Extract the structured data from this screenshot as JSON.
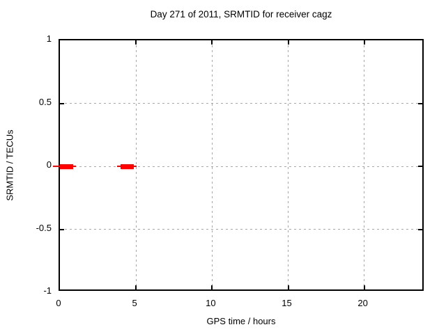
{
  "chart_data": {
    "type": "scatter",
    "title": "Day 271 of 2011, SRMTID for receiver cagz",
    "xlabel": "GPS time / hours",
    "ylabel": "SRMTID / TECUs",
    "xlim": [
      0,
      24
    ],
    "ylim": [
      -1,
      1
    ],
    "xticks": [
      0,
      5,
      10,
      15,
      20
    ],
    "xtick_labels": [
      "0",
      "5",
      "10",
      "15",
      "20"
    ],
    "yticks": [
      1,
      0.5,
      0,
      -0.5,
      -1
    ],
    "ytick_labels": [
      "1",
      "0.5",
      "0",
      "-0.5",
      "-1"
    ],
    "grid": true,
    "grid_style": "dashed",
    "legend_position": "none",
    "colors": {
      "series": "#ff0000",
      "grid": "#a6a6a6",
      "axis": "#000000",
      "background": "#ffffff",
      "text": "#000000"
    },
    "series": [
      {
        "name": "SRMTID",
        "style": "thick horizontal segment with thin whisker extensions, centered at y",
        "segments": [
          {
            "y": 0,
            "bar_x": [
              0.0,
              0.87
            ],
            "whisker_x": [
              -0.45,
              1.05
            ]
          },
          {
            "y": 0,
            "bar_x": [
              4.0,
              4.85
            ],
            "whisker_x": [
              3.75,
              5.05
            ]
          }
        ]
      }
    ]
  }
}
